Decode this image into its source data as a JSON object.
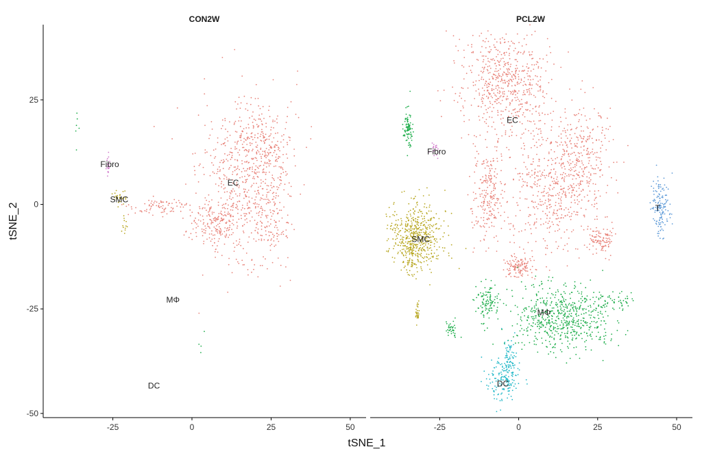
{
  "chart_data": {
    "type": "scatter",
    "xlabel": "tSNE_1",
    "ylabel": "tSNE_2",
    "xlim": [
      -47,
      55
    ],
    "ylim": [
      -51,
      43
    ],
    "xticks": [
      -25,
      0,
      25,
      50
    ],
    "yticks": [
      25,
      0,
      -25,
      -50
    ],
    "xtick_labels": [
      "-25",
      "0",
      "25",
      "50"
    ],
    "ytick_labels": [
      "25",
      "0",
      "-25",
      "-50"
    ],
    "grid": false,
    "legend": "none",
    "clusters": [
      {
        "name": "EC",
        "color": "#E8837A"
      },
      {
        "name": "SMC",
        "color": "#B8A722"
      },
      {
        "name": "Fibro",
        "color": "#D17BCB"
      },
      {
        "name": "T",
        "color": "#5F9BD8"
      },
      {
        "name": "MΦ",
        "color": "#1EAD4B"
      },
      {
        "name": "DC",
        "color": "#22B8C8"
      }
    ],
    "panels": [
      {
        "title": "CON2W",
        "labels": [
          {
            "text": "EC",
            "x": 13,
            "y": 5
          },
          {
            "text": "Fibro",
            "x": -26,
            "y": 9.5
          },
          {
            "text": "SMC",
            "x": -23,
            "y": 1
          },
          {
            "text": "MΦ",
            "x": -6,
            "y": -23
          },
          {
            "text": "DC",
            "x": -12,
            "y": -43.5
          }
        ],
        "clusters": [
          {
            "name": "EC",
            "n": 1100,
            "blobs": [
              {
                "cx": 16,
                "cy": 4,
                "sx": 7,
                "sy": 10,
                "w": 0.45
              },
              {
                "cx": 22,
                "cy": 14,
                "sx": 5,
                "sy": 5,
                "w": 0.2
              },
              {
                "cx": 8,
                "cy": -5,
                "sx": 4,
                "sy": 2.5,
                "w": 0.15
              },
              {
                "cx": 25,
                "cy": -1,
                "sx": 3,
                "sy": 6,
                "w": 0.12
              },
              {
                "cx": -10,
                "cy": -0.5,
                "sx": 5,
                "sy": 1.3,
                "w": 0.08
              }
            ]
          },
          {
            "name": "SMC",
            "n": 40,
            "blobs": [
              {
                "cx": -23,
                "cy": 1.5,
                "sx": 1.2,
                "sy": 0.8,
                "w": 0.7
              },
              {
                "cx": -21,
                "cy": -5,
                "sx": 0.6,
                "sy": 1.5,
                "w": 0.3
              }
            ]
          },
          {
            "name": "Fibro",
            "n": 25,
            "blobs": [
              {
                "cx": -26.5,
                "cy": 9.5,
                "sx": 0.25,
                "sy": 1.4,
                "w": 1
              }
            ]
          },
          {
            "name": "MΦ",
            "n": 10,
            "blobs": [
              {
                "cx": -36.5,
                "cy": 18,
                "sx": 0.3,
                "sy": 3,
                "w": 0.6
              },
              {
                "cx": 5,
                "cy": -33,
                "sx": 3,
                "sy": 2,
                "w": 0.4
              }
            ]
          }
        ]
      },
      {
        "title": "PCL2W",
        "labels": [
          {
            "text": "EC",
            "x": -2,
            "y": 20
          },
          {
            "text": "Fibro",
            "x": -26,
            "y": 12.5
          },
          {
            "text": "SMC",
            "x": -31,
            "y": -8.5
          },
          {
            "text": "T",
            "x": 44,
            "y": -1
          },
          {
            "text": "MΦ",
            "x": 8,
            "y": -26
          },
          {
            "text": "DC",
            "x": -5,
            "y": -43
          }
        ],
        "clusters": [
          {
            "name": "EC",
            "n": 1800,
            "blobs": [
              {
                "cx": -4,
                "cy": 29,
                "sx": 7,
                "sy": 7,
                "w": 0.35
              },
              {
                "cx": 10,
                "cy": 3,
                "sx": 7,
                "sy": 7,
                "w": 0.25
              },
              {
                "cx": 20,
                "cy": 12,
                "sx": 5,
                "sy": 6,
                "w": 0.15
              },
              {
                "cx": -10,
                "cy": 2,
                "sx": 2.5,
                "sy": 5,
                "w": 0.12
              },
              {
                "cx": 26,
                "cy": -8,
                "sx": 2,
                "sy": 2,
                "w": 0.06
              },
              {
                "cx": 0,
                "cy": -15,
                "sx": 2,
                "sy": 1.5,
                "w": 0.07
              }
            ]
          },
          {
            "name": "SMC",
            "n": 600,
            "blobs": [
              {
                "cx": -32.5,
                "cy": -8,
                "sx": 4,
                "sy": 4,
                "w": 0.95
              },
              {
                "cx": -32,
                "cy": -26,
                "sx": 0.3,
                "sy": 1.2,
                "w": 0.05
              }
            ]
          },
          {
            "name": "Fibro",
            "n": 20,
            "blobs": [
              {
                "cx": -26.5,
                "cy": 13,
                "sx": 0.6,
                "sy": 1,
                "w": 1
              }
            ]
          },
          {
            "name": "T",
            "n": 150,
            "blobs": [
              {
                "cx": 45,
                "cy": -1,
                "sx": 1.5,
                "sy": 3.5,
                "w": 1
              }
            ]
          },
          {
            "name": "MΦ",
            "n": 900,
            "blobs": [
              {
                "cx": 14,
                "cy": -27,
                "sx": 8,
                "sy": 4,
                "w": 0.7
              },
              {
                "cx": -10,
                "cy": -23,
                "sx": 2,
                "sy": 2,
                "w": 0.12
              },
              {
                "cx": -35,
                "cy": 18,
                "sx": 0.8,
                "sy": 2.5,
                "w": 0.1
              },
              {
                "cx": -21,
                "cy": -30,
                "sx": 1,
                "sy": 1,
                "w": 0.04
              },
              {
                "cx": 30,
                "cy": -23,
                "sx": 3,
                "sy": 0.8,
                "w": 0.04
              }
            ]
          },
          {
            "name": "DC",
            "n": 220,
            "blobs": [
              {
                "cx": -5,
                "cy": -42,
                "sx": 2.5,
                "sy": 2.5,
                "w": 0.7
              },
              {
                "cx": -3,
                "cy": -37,
                "sx": 1,
                "sy": 3,
                "w": 0.3
              }
            ]
          }
        ]
      }
    ]
  }
}
